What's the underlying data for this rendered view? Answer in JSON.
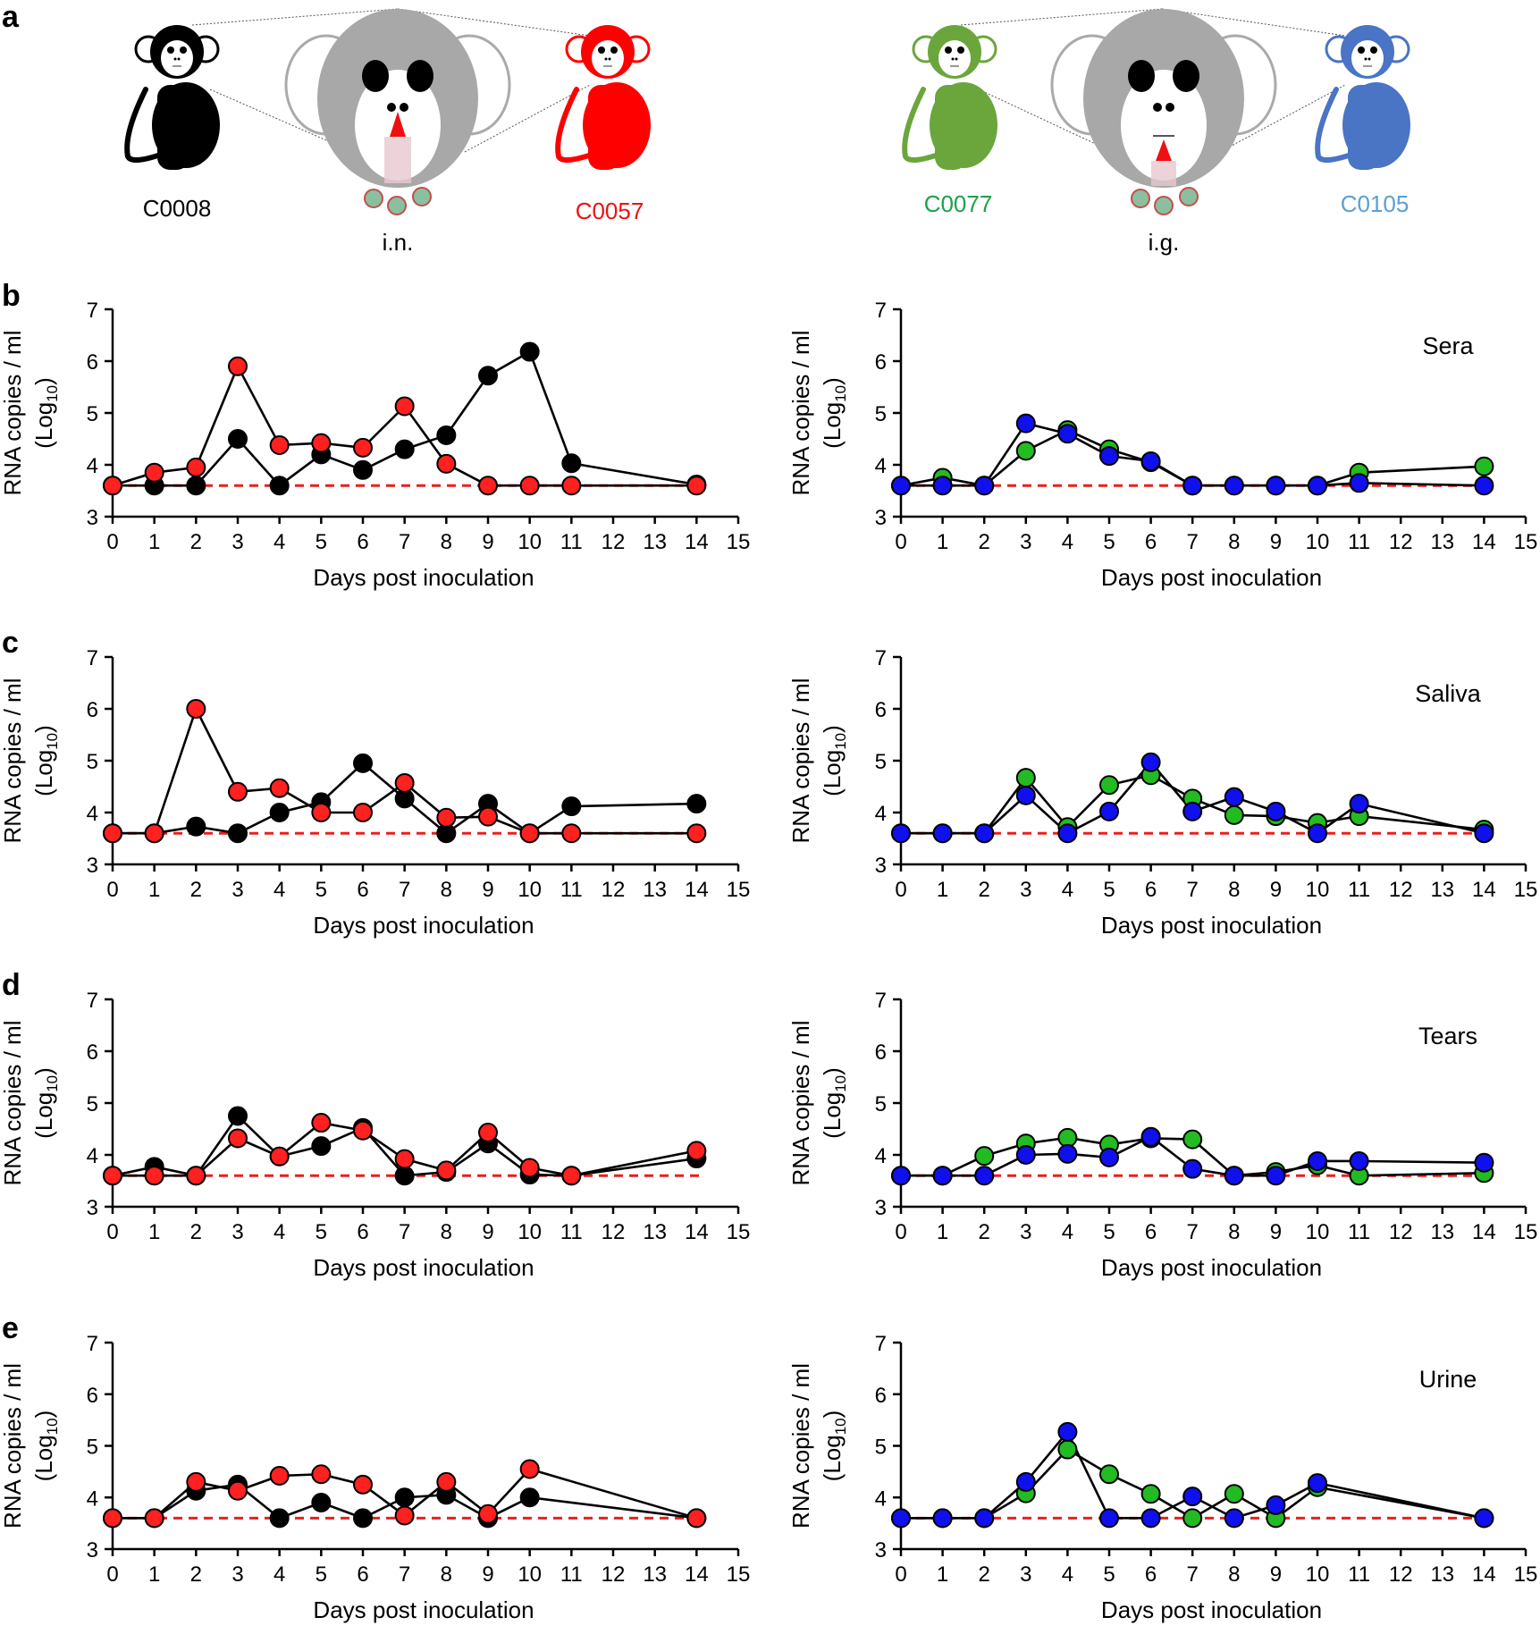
{
  "panel_a": {
    "letter": "a",
    "route_left": "i.n.",
    "route_right": "i.g.",
    "animals": [
      {
        "id": "C0008",
        "color": "#000000"
      },
      {
        "id": "C0057",
        "color": "#ff0000"
      },
      {
        "id": "C0077",
        "color": "#6aa63c"
      },
      {
        "id": "C0105",
        "color": "#4a74c4"
      }
    ],
    "text_colors": {
      "C0008": "#000000",
      "C0057": "#ee1111",
      "C0077": "#1ea04a",
      "C0105": "#5aa0d6"
    }
  },
  "series_colors": {
    "C0008": "#000000",
    "C0057": "#ff2020",
    "C0077": "#22bb22",
    "C0105": "#1010ee"
  },
  "threshold_color": "#e8201e",
  "chart_data": [
    {
      "type": "line",
      "row": "b",
      "side": "left",
      "title": "",
      "xlabel": "Days post inoculation",
      "ylabel": "RNA copies / ml",
      "ylabel_sub": "(Log",
      "ylabel_subscript": "10",
      "ylabel_close": ")",
      "xlim": [
        0,
        15
      ],
      "ylim": [
        3,
        7
      ],
      "xticks": [
        "0",
        "1",
        "2",
        "3",
        "4",
        "5",
        "6",
        "7",
        "8",
        "9",
        "10",
        "11",
        "12",
        "13",
        "14",
        "15"
      ],
      "yticks": [
        "3",
        "4",
        "5",
        "6",
        "7"
      ],
      "threshold": 3.6,
      "series": [
        {
          "animal": "C0008",
          "x": [
            0,
            1,
            2,
            3,
            4,
            5,
            6,
            7,
            8,
            9,
            10,
            11,
            14
          ],
          "y": [
            3.6,
            3.6,
            3.6,
            4.5,
            3.6,
            4.2,
            3.9,
            4.3,
            4.57,
            5.72,
            6.18,
            4.03,
            3.62
          ]
        },
        {
          "animal": "C0057",
          "x": [
            0,
            1,
            2,
            3,
            4,
            5,
            6,
            7,
            8,
            9,
            10,
            11,
            14
          ],
          "y": [
            3.6,
            3.85,
            3.95,
            5.9,
            4.38,
            4.42,
            4.33,
            5.13,
            4.02,
            3.6,
            3.6,
            3.6,
            3.6
          ]
        }
      ]
    },
    {
      "type": "line",
      "row": "b",
      "side": "right",
      "title": "Sera",
      "xlabel": "Days post inoculation",
      "ylabel": "RNA copies / ml",
      "ylabel_sub": "(Log",
      "ylabel_subscript": "10",
      "ylabel_close": ")",
      "xlim": [
        0,
        15
      ],
      "ylim": [
        3,
        7
      ],
      "xticks": [
        "0",
        "1",
        "2",
        "3",
        "4",
        "5",
        "6",
        "7",
        "8",
        "9",
        "10",
        "11",
        "12",
        "13",
        "14",
        "15"
      ],
      "yticks": [
        "3",
        "4",
        "5",
        "6",
        "7"
      ],
      "threshold": 3.6,
      "series": [
        {
          "animal": "C0077",
          "x": [
            0,
            1,
            2,
            3,
            4,
            5,
            6,
            7,
            8,
            9,
            10,
            11,
            14
          ],
          "y": [
            3.6,
            3.75,
            3.6,
            4.27,
            4.67,
            4.3,
            4.05,
            3.6,
            3.6,
            3.6,
            3.6,
            3.85,
            3.97
          ]
        },
        {
          "animal": "C0105",
          "x": [
            0,
            1,
            2,
            3,
            4,
            5,
            6,
            7,
            8,
            9,
            10,
            11,
            14
          ],
          "y": [
            3.6,
            3.6,
            3.6,
            4.8,
            4.6,
            4.17,
            4.07,
            3.6,
            3.6,
            3.6,
            3.6,
            3.65,
            3.6
          ]
        }
      ]
    },
    {
      "type": "line",
      "row": "c",
      "side": "left",
      "title": "",
      "xlabel": "Days post inoculation",
      "ylabel": "RNA copies / ml",
      "ylabel_sub": "(Log",
      "ylabel_subscript": "10",
      "ylabel_close": ")",
      "xlim": [
        0,
        15
      ],
      "ylim": [
        3,
        7
      ],
      "xticks": [
        "0",
        "1",
        "2",
        "3",
        "4",
        "5",
        "6",
        "7",
        "8",
        "9",
        "10",
        "11",
        "12",
        "13",
        "14",
        "15"
      ],
      "yticks": [
        "3",
        "4",
        "5",
        "6",
        "7"
      ],
      "threshold": 3.6,
      "series": [
        {
          "animal": "C0008",
          "x": [
            0,
            1,
            2,
            3,
            4,
            5,
            6,
            7,
            8,
            9,
            10,
            11,
            14
          ],
          "y": [
            3.6,
            3.6,
            3.73,
            3.6,
            4.0,
            4.2,
            4.95,
            4.27,
            3.6,
            4.17,
            3.6,
            4.12,
            4.17
          ]
        },
        {
          "animal": "C0057",
          "x": [
            0,
            1,
            2,
            3,
            4,
            5,
            6,
            7,
            8,
            9,
            10,
            11,
            14
          ],
          "y": [
            3.6,
            3.6,
            6.0,
            4.4,
            4.47,
            4.0,
            4.0,
            4.57,
            3.9,
            3.92,
            3.6,
            3.6,
            3.6
          ]
        }
      ]
    },
    {
      "type": "line",
      "row": "c",
      "side": "right",
      "title": "Saliva",
      "xlabel": "Days post inoculation",
      "ylabel": "RNA copies / ml",
      "ylabel_sub": "(Log",
      "ylabel_subscript": "10",
      "ylabel_close": ")",
      "xlim": [
        0,
        15
      ],
      "ylim": [
        3,
        7
      ],
      "xticks": [
        "0",
        "1",
        "2",
        "3",
        "4",
        "5",
        "6",
        "7",
        "8",
        "9",
        "10",
        "11",
        "12",
        "13",
        "14",
        "15"
      ],
      "yticks": [
        "3",
        "4",
        "5",
        "6",
        "7"
      ],
      "threshold": 3.6,
      "series": [
        {
          "animal": "C0077",
          "x": [
            0,
            1,
            2,
            3,
            4,
            5,
            6,
            7,
            8,
            9,
            10,
            11,
            14
          ],
          "y": [
            3.6,
            3.6,
            3.6,
            4.67,
            3.72,
            4.53,
            4.72,
            4.27,
            3.95,
            3.93,
            3.8,
            3.93,
            3.67
          ]
        },
        {
          "animal": "C0105",
          "x": [
            0,
            1,
            2,
            3,
            4,
            5,
            6,
            7,
            8,
            9,
            10,
            11,
            14
          ],
          "y": [
            3.6,
            3.6,
            3.6,
            4.33,
            3.6,
            4.02,
            4.97,
            4.02,
            4.3,
            4.02,
            3.6,
            4.17,
            3.6
          ]
        }
      ]
    },
    {
      "type": "line",
      "row": "d",
      "side": "left",
      "title": "",
      "xlabel": "Days post inoculation",
      "ylabel": "RNA copies / ml",
      "ylabel_sub": "(Log",
      "ylabel_subscript": "10",
      "ylabel_close": ")",
      "xlim": [
        0,
        15
      ],
      "ylim": [
        3,
        7
      ],
      "xticks": [
        "0",
        "1",
        "2",
        "3",
        "4",
        "5",
        "6",
        "7",
        "8",
        "9",
        "10",
        "11",
        "12",
        "13",
        "14",
        "15"
      ],
      "yticks": [
        "3",
        "4",
        "5",
        "6",
        "7"
      ],
      "threshold": 3.6,
      "series": [
        {
          "animal": "C0008",
          "x": [
            0,
            1,
            2,
            3,
            4,
            5,
            6,
            7,
            8,
            9,
            10,
            11,
            14
          ],
          "y": [
            3.6,
            3.77,
            3.6,
            4.75,
            3.97,
            4.17,
            4.52,
            3.6,
            3.67,
            4.22,
            3.62,
            3.6,
            3.93
          ]
        },
        {
          "animal": "C0057",
          "x": [
            0,
            1,
            2,
            3,
            4,
            5,
            6,
            7,
            8,
            9,
            10,
            11,
            14
          ],
          "y": [
            3.6,
            3.6,
            3.6,
            4.32,
            3.97,
            4.62,
            4.47,
            3.92,
            3.7,
            4.43,
            3.75,
            3.6,
            4.08
          ]
        }
      ]
    },
    {
      "type": "line",
      "row": "d",
      "side": "right",
      "title": "Tears",
      "xlabel": "Days post inoculation",
      "ylabel": "RNA copies / ml",
      "ylabel_sub": "(Log",
      "ylabel_subscript": "10",
      "ylabel_close": ")",
      "xlim": [
        0,
        15
      ],
      "ylim": [
        3,
        7
      ],
      "xticks": [
        "0",
        "1",
        "2",
        "3",
        "4",
        "5",
        "6",
        "7",
        "8",
        "9",
        "10",
        "11",
        "12",
        "13",
        "14",
        "15"
      ],
      "yticks": [
        "3",
        "4",
        "5",
        "6",
        "7"
      ],
      "threshold": 3.6,
      "series": [
        {
          "animal": "C0077",
          "x": [
            0,
            1,
            2,
            3,
            4,
            5,
            6,
            7,
            8,
            9,
            10,
            11,
            14
          ],
          "y": [
            3.6,
            3.6,
            3.98,
            4.22,
            4.33,
            4.2,
            4.32,
            4.3,
            3.6,
            3.67,
            3.8,
            3.6,
            3.65
          ]
        },
        {
          "animal": "C0105",
          "x": [
            0,
            1,
            2,
            3,
            4,
            5,
            6,
            7,
            8,
            9,
            10,
            11,
            14
          ],
          "y": [
            3.6,
            3.6,
            3.6,
            4.0,
            4.02,
            3.95,
            4.35,
            3.73,
            3.6,
            3.6,
            3.88,
            3.88,
            3.85
          ]
        }
      ]
    },
    {
      "type": "line",
      "row": "e",
      "side": "left",
      "title": "",
      "xlabel": "Days post inoculation",
      "ylabel": "RNA copies / ml",
      "ylabel_sub": "(Log",
      "ylabel_subscript": "10",
      "ylabel_close": ")",
      "xlim": [
        0,
        15
      ],
      "ylim": [
        3,
        7
      ],
      "xticks": [
        "0",
        "1",
        "2",
        "3",
        "4",
        "5",
        "6",
        "7",
        "8",
        "9",
        "10",
        "11",
        "12",
        "13",
        "14",
        "15"
      ],
      "yticks": [
        "3",
        "4",
        "5",
        "6",
        "7"
      ],
      "threshold": 3.6,
      "series": [
        {
          "animal": "C0008",
          "x": [
            0,
            1,
            2,
            3,
            4,
            5,
            6,
            7,
            8,
            9,
            10,
            14
          ],
          "y": [
            3.6,
            3.6,
            4.13,
            4.25,
            3.6,
            3.9,
            3.6,
            4.0,
            4.05,
            3.6,
            4.0,
            3.6
          ]
        },
        {
          "animal": "C0057",
          "x": [
            0,
            1,
            2,
            3,
            4,
            5,
            6,
            7,
            8,
            9,
            10,
            14
          ],
          "y": [
            3.6,
            3.6,
            4.3,
            4.13,
            4.42,
            4.45,
            4.25,
            3.65,
            4.3,
            3.68,
            4.55,
            3.6
          ]
        }
      ]
    },
    {
      "type": "line",
      "row": "e",
      "side": "right",
      "title": "Urine",
      "xlabel": "Days post inoculation",
      "ylabel": "RNA copies / ml",
      "ylabel_sub": "(Log",
      "ylabel_subscript": "10",
      "ylabel_close": ")",
      "xlim": [
        0,
        15
      ],
      "ylim": [
        3,
        7
      ],
      "xticks": [
        "0",
        "1",
        "2",
        "3",
        "4",
        "5",
        "6",
        "7",
        "8",
        "9",
        "10",
        "11",
        "12",
        "13",
        "14",
        "15"
      ],
      "yticks": [
        "3",
        "4",
        "5",
        "6",
        "7"
      ],
      "threshold": 3.6,
      "series": [
        {
          "animal": "C0077",
          "x": [
            0,
            1,
            2,
            3,
            4,
            5,
            6,
            7,
            8,
            9,
            10,
            14
          ],
          "y": [
            3.6,
            3.6,
            3.6,
            4.08,
            4.93,
            4.45,
            4.07,
            3.6,
            4.07,
            3.6,
            4.2,
            3.6
          ]
        },
        {
          "animal": "C0105",
          "x": [
            0,
            1,
            2,
            3,
            4,
            5,
            6,
            7,
            8,
            9,
            10,
            14
          ],
          "y": [
            3.6,
            3.6,
            3.6,
            4.3,
            5.27,
            3.6,
            3.6,
            4.02,
            3.6,
            3.85,
            4.28,
            3.6
          ]
        }
      ]
    }
  ]
}
